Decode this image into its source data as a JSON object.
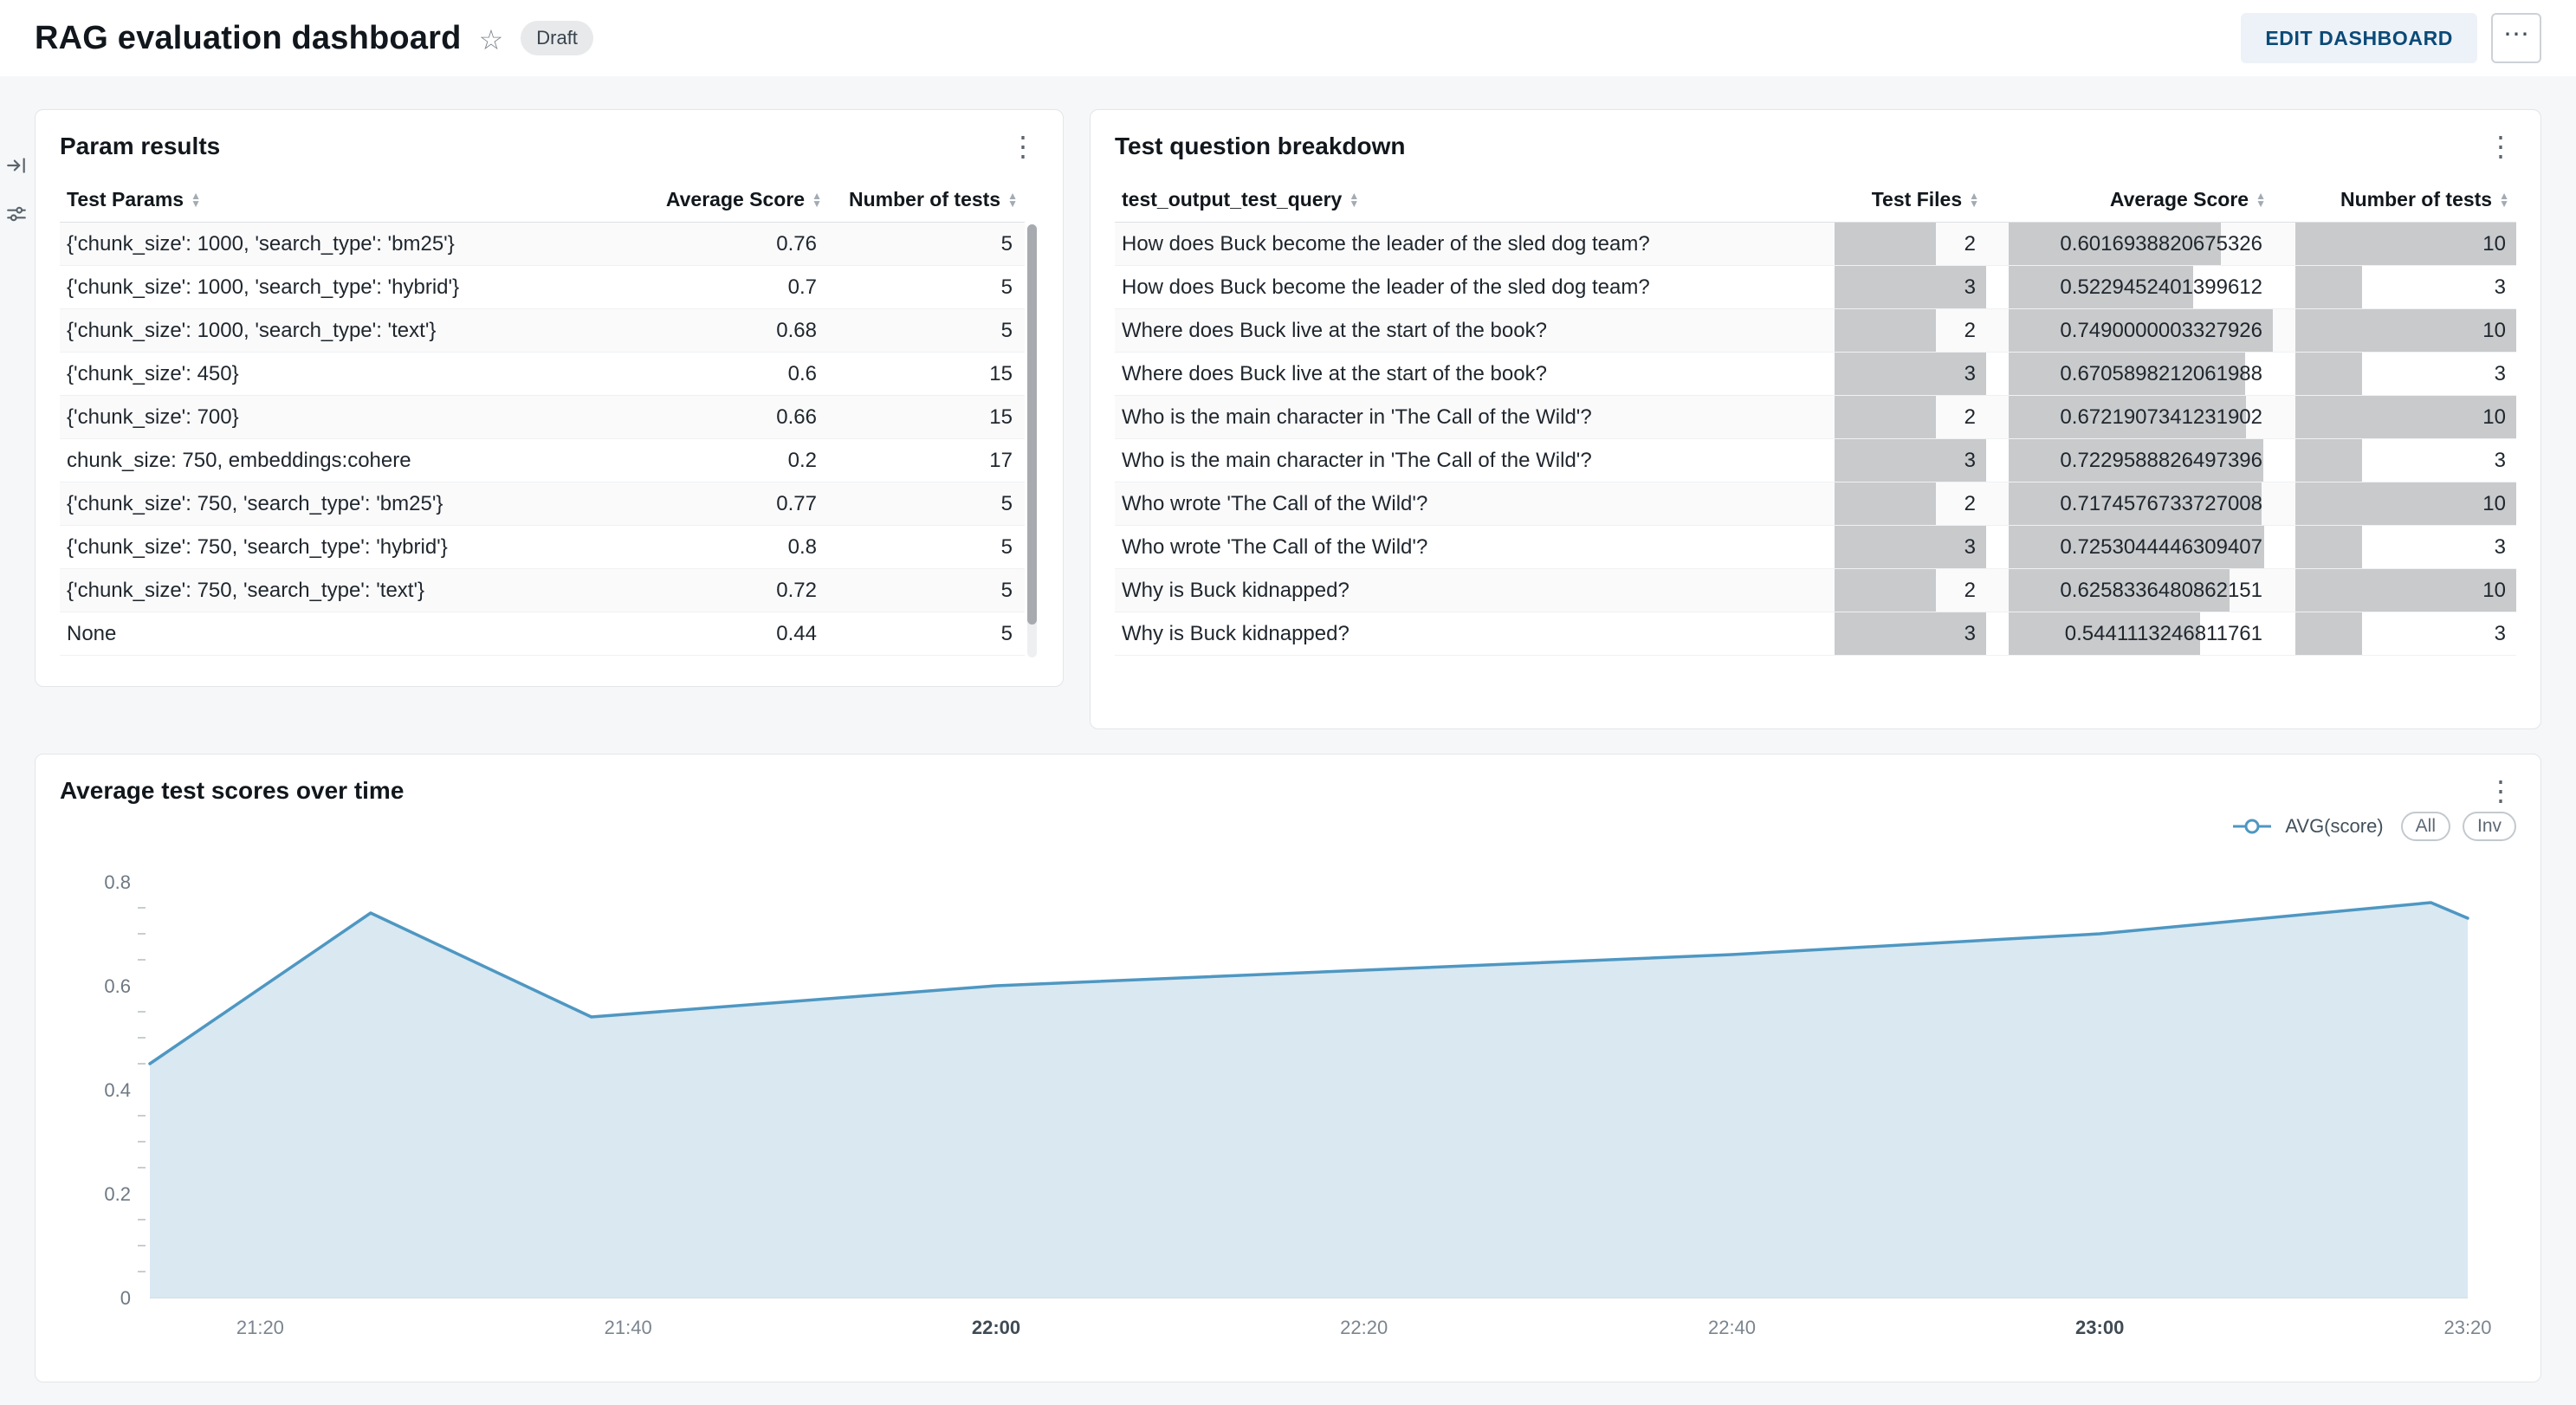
{
  "header": {
    "title": "RAG evaluation dashboard",
    "badge": "Draft",
    "edit_button": "EDIT DASHBOARD"
  },
  "icons": {
    "kebab": "⋮",
    "more": "⋯",
    "star": "☆"
  },
  "cards": {
    "param_results": {
      "title": "Param results",
      "columns": [
        "Test Params",
        "Average Score",
        "Number of tests"
      ],
      "rows": [
        {
          "params": "{'chunk_size': 1000, 'search_type': 'bm25'}",
          "avg": "0.76",
          "tests": "5"
        },
        {
          "params": "{'chunk_size': 1000, 'search_type': 'hybrid'}",
          "avg": "0.7",
          "tests": "5"
        },
        {
          "params": "{'chunk_size': 1000, 'search_type': 'text'}",
          "avg": "0.68",
          "tests": "5"
        },
        {
          "params": "{'chunk_size': 450}",
          "avg": "0.6",
          "tests": "15"
        },
        {
          "params": "{'chunk_size': 700}",
          "avg": "0.66",
          "tests": "15"
        },
        {
          "params": "chunk_size: 750, embeddings:cohere",
          "avg": "0.2",
          "tests": "17"
        },
        {
          "params": "{'chunk_size': 750, 'search_type': 'bm25'}",
          "avg": "0.77",
          "tests": "5"
        },
        {
          "params": "{'chunk_size': 750, 'search_type': 'hybrid'}",
          "avg": "0.8",
          "tests": "5"
        },
        {
          "params": "{'chunk_size': 750, 'search_type': 'text'}",
          "avg": "0.72",
          "tests": "5"
        },
        {
          "params": "None",
          "avg": "0.44",
          "tests": "5"
        }
      ]
    },
    "question_breakdown": {
      "title": "Test question breakdown",
      "columns": [
        "test_output_test_query",
        "Test Files",
        "Average Score",
        "Number of tests"
      ],
      "rows": [
        {
          "query": "How does Buck become the leader of the sled dog team?",
          "files": 2,
          "avg": "0.6016938820675326",
          "tests": 10
        },
        {
          "query": "How does Buck become the leader of the sled dog team?",
          "files": 3,
          "avg": "0.5229452401399612",
          "tests": 3
        },
        {
          "query": "Where does Buck live at the start of the book?",
          "files": 2,
          "avg": "0.7490000003327926",
          "tests": 10
        },
        {
          "query": "Where does Buck live at the start of the book?",
          "files": 3,
          "avg": "0.6705898212061988",
          "tests": 3
        },
        {
          "query": "Who is the main character in 'The Call of the Wild'?",
          "files": 2,
          "avg": "0.6721907341231902",
          "tests": 10
        },
        {
          "query": "Who is the main character in 'The Call of the Wild'?",
          "files": 3,
          "avg": "0.7229588826497396",
          "tests": 3
        },
        {
          "query": "Who wrote 'The Call of the Wild'?",
          "files": 2,
          "avg": "0.7174576733727008",
          "tests": 10
        },
        {
          "query": "Who wrote 'The Call of the Wild'?",
          "files": 3,
          "avg": "0.7253044446309407",
          "tests": 3
        },
        {
          "query": "Why is Buck kidnapped?",
          "files": 2,
          "avg": "0.6258336480862151",
          "tests": 10
        },
        {
          "query": "Why is Buck kidnapped?",
          "files": 3,
          "avg": "0.5441113246811761",
          "tests": 3
        }
      ]
    },
    "scores_over_time": {
      "title": "Average test scores over time",
      "legend": "AVG(score)",
      "range_buttons": [
        "All",
        "Inv"
      ]
    }
  },
  "chart_data": {
    "type": "area",
    "title": "Average test scores over time",
    "series": [
      {
        "name": "AVG(score)",
        "points": [
          [
            "21:14",
            0.45
          ],
          [
            "21:26",
            0.74
          ],
          [
            "21:38",
            0.54
          ],
          [
            "22:00",
            0.6
          ],
          [
            "22:20",
            0.63
          ],
          [
            "22:40",
            0.66
          ],
          [
            "23:00",
            0.7
          ],
          [
            "23:18",
            0.76
          ],
          [
            "23:20",
            0.73
          ]
        ]
      }
    ],
    "xlim": [
      "21:14",
      "23:20"
    ],
    "ylim": [
      0,
      0.8
    ],
    "x_tick_labels": [
      "21:20",
      "21:40",
      "22:00",
      "22:20",
      "22:40",
      "23:00",
      "23:20"
    ],
    "x_bold_labels": [
      "22:00",
      "23:00"
    ],
    "y_ticks": [
      0,
      0.2,
      0.4,
      0.6,
      0.8
    ],
    "y_minor_step": 0.05,
    "grid": false,
    "legend_position": "top-right",
    "line_color": "#4E97C2",
    "area_color": "#D9E8F1",
    "bar_color": "#C8CACC"
  }
}
